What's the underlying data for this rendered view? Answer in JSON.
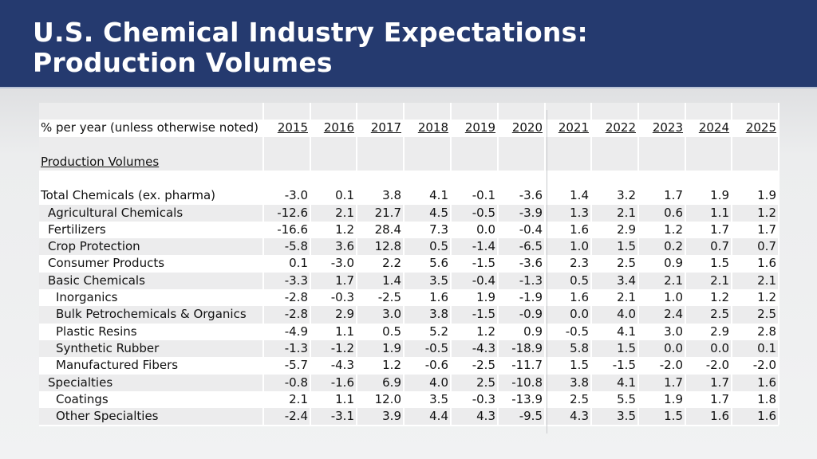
{
  "slide": {
    "title_line1": "U.S. Chemical Industry Expectations:",
    "title_line2": "Production Volumes"
  },
  "table": {
    "unit_label": "% per year (unless otherwise noted)",
    "years": [
      "2015",
      "2016",
      "2017",
      "2018",
      "2019",
      "2020",
      "2021",
      "2022",
      "2023",
      "2024",
      "2025"
    ],
    "section_label": "Production Volumes",
    "rows": [
      {
        "label": "Total Chemicals (ex. pharma)",
        "indent": 0,
        "values": [
          "-3.0",
          "0.1",
          "3.8",
          "4.1",
          "-0.1",
          "-3.6",
          "1.4",
          "3.2",
          "1.7",
          "1.9",
          "1.9"
        ]
      },
      {
        "label": "Agricultural Chemicals",
        "indent": 1,
        "values": [
          "-12.6",
          "2.1",
          "21.7",
          "4.5",
          "-0.5",
          "-3.9",
          "1.3",
          "2.1",
          "0.6",
          "1.1",
          "1.2"
        ]
      },
      {
        "label": "Fertilizers",
        "indent": 1,
        "values": [
          "-16.6",
          "1.2",
          "28.4",
          "7.3",
          "0.0",
          "-0.4",
          "1.6",
          "2.9",
          "1.2",
          "1.7",
          "1.7"
        ]
      },
      {
        "label": "Crop Protection",
        "indent": 1,
        "values": [
          "-5.8",
          "3.6",
          "12.8",
          "0.5",
          "-1.4",
          "-6.5",
          "1.0",
          "1.5",
          "0.2",
          "0.7",
          "0.7"
        ]
      },
      {
        "label": "Consumer Products",
        "indent": 1,
        "values": [
          "0.1",
          "-3.0",
          "2.2",
          "5.6",
          "-1.5",
          "-3.6",
          "2.3",
          "2.5",
          "0.9",
          "1.5",
          "1.6"
        ]
      },
      {
        "label": "Basic Chemicals",
        "indent": 1,
        "values": [
          "-3.3",
          "1.7",
          "1.4",
          "3.5",
          "-0.4",
          "-1.3",
          "0.5",
          "3.4",
          "2.1",
          "2.1",
          "2.1"
        ]
      },
      {
        "label": "Inorganics",
        "indent": 2,
        "values": [
          "-2.8",
          "-0.3",
          "-2.5",
          "1.6",
          "1.9",
          "-1.9",
          "1.6",
          "2.1",
          "1.0",
          "1.2",
          "1.2"
        ]
      },
      {
        "label": "Bulk Petrochemicals & Organics",
        "indent": 2,
        "values": [
          "-2.8",
          "2.9",
          "3.0",
          "3.8",
          "-1.5",
          "-0.9",
          "0.0",
          "4.0",
          "2.4",
          "2.5",
          "2.5"
        ]
      },
      {
        "label": "Plastic Resins",
        "indent": 2,
        "values": [
          "-4.9",
          "1.1",
          "0.5",
          "5.2",
          "1.2",
          "0.9",
          "-0.5",
          "4.1",
          "3.0",
          "2.9",
          "2.8"
        ]
      },
      {
        "label": "Synthetic Rubber",
        "indent": 2,
        "values": [
          "-1.3",
          "-1.2",
          "1.9",
          "-0.5",
          "-4.3",
          "-18.9",
          "5.8",
          "1.5",
          "0.0",
          "0.0",
          "0.1"
        ]
      },
      {
        "label": "Manufactured Fibers",
        "indent": 2,
        "values": [
          "-5.7",
          "-4.3",
          "1.2",
          "-0.6",
          "-2.5",
          "-11.7",
          "1.5",
          "-1.5",
          "-2.0",
          "-2.0",
          "-2.0"
        ]
      },
      {
        "label": "Specialties",
        "indent": 1,
        "values": [
          "-0.8",
          "-1.6",
          "6.9",
          "4.0",
          "2.5",
          "-10.8",
          "3.8",
          "4.1",
          "1.7",
          "1.7",
          "1.6"
        ]
      },
      {
        "label": "Coatings",
        "indent": 2,
        "values": [
          "2.1",
          "1.1",
          "12.0",
          "3.5",
          "-0.3",
          "-13.9",
          "2.5",
          "5.5",
          "1.9",
          "1.7",
          "1.8"
        ]
      },
      {
        "label": "Other Specialties",
        "indent": 2,
        "values": [
          "-2.4",
          "-3.1",
          "3.9",
          "4.4",
          "4.3",
          "-9.5",
          "4.3",
          "3.5",
          "1.5",
          "1.6",
          "1.6"
        ]
      }
    ]
  },
  "colors": {
    "header_bg": "#253a6f",
    "title_text": "#ffffff",
    "row_shade": "#ececed"
  }
}
